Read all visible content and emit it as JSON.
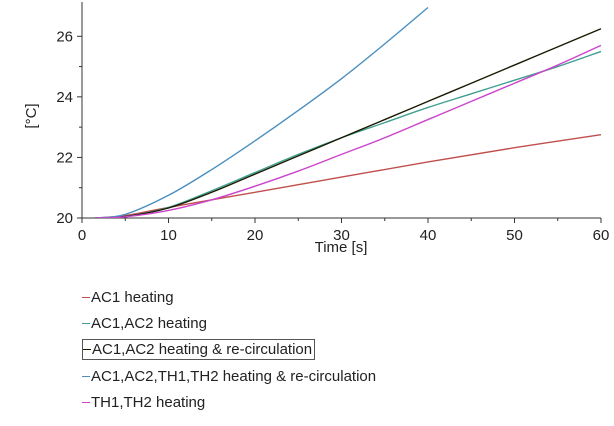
{
  "chart_data": {
    "type": "line",
    "xlabel": "Time [s]",
    "ylabel": "[°C]",
    "xlim": [
      0,
      60
    ],
    "ylim": [
      20,
      27
    ],
    "xticks": [
      0,
      10,
      20,
      30,
      40,
      50,
      60
    ],
    "yticks": [
      20,
      22,
      24,
      26
    ],
    "grid": false,
    "legend_position": "bottom",
    "series": [
      {
        "name": "AC1 heating",
        "color": "#c0504d",
        "points": [
          [
            1.5,
            20.0
          ],
          [
            5,
            20.08
          ],
          [
            10,
            20.35
          ],
          [
            20,
            20.85
          ],
          [
            30,
            21.35
          ],
          [
            40,
            21.85
          ],
          [
            50,
            22.32
          ],
          [
            60,
            22.75
          ]
        ]
      },
      {
        "name": "AC1,AC2 heating",
        "color": "#3f9f8f",
        "points": [
          [
            1.5,
            20.0
          ],
          [
            5,
            20.05
          ],
          [
            10,
            20.35
          ],
          [
            15,
            20.9
          ],
          [
            20,
            21.5
          ],
          [
            25,
            22.1
          ],
          [
            30,
            22.65
          ],
          [
            35,
            23.15
          ],
          [
            40,
            23.65
          ],
          [
            45,
            24.1
          ],
          [
            50,
            24.55
          ],
          [
            55,
            25.0
          ],
          [
            60,
            25.5
          ]
        ]
      },
      {
        "name": "AC1,AC2 heating & re-circulation",
        "color": "#1a1a00",
        "points": [
          [
            1.5,
            20.0
          ],
          [
            5,
            20.05
          ],
          [
            10,
            20.33
          ],
          [
            15,
            20.85
          ],
          [
            20,
            21.45
          ],
          [
            25,
            22.05
          ],
          [
            30,
            22.65
          ],
          [
            35,
            23.25
          ],
          [
            40,
            23.85
          ],
          [
            45,
            24.45
          ],
          [
            50,
            25.05
          ],
          [
            55,
            25.65
          ],
          [
            60,
            26.25
          ]
        ]
      },
      {
        "name": "AC1,AC2,TH1,TH2 heating & re-circulation",
        "color": "#4a8fc0",
        "points": [
          [
            1.5,
            20.0
          ],
          [
            5,
            20.12
          ],
          [
            10,
            20.75
          ],
          [
            15,
            21.6
          ],
          [
            20,
            22.55
          ],
          [
            25,
            23.55
          ],
          [
            30,
            24.6
          ],
          [
            35,
            25.75
          ],
          [
            40,
            26.95
          ]
        ]
      },
      {
        "name": "TH1,TH2 heating",
        "color": "#cc44cc",
        "points": [
          [
            1.5,
            20.0
          ],
          [
            5,
            20.04
          ],
          [
            10,
            20.25
          ],
          [
            15,
            20.6
          ],
          [
            20,
            21.05
          ],
          [
            25,
            21.55
          ],
          [
            30,
            22.1
          ],
          [
            35,
            22.65
          ],
          [
            40,
            23.25
          ],
          [
            45,
            23.85
          ],
          [
            50,
            24.45
          ],
          [
            55,
            25.05
          ],
          [
            60,
            25.7
          ]
        ]
      }
    ]
  },
  "legend": {
    "items": [
      {
        "label": "AC1 heating",
        "color": "#c0504d",
        "highlighted": false
      },
      {
        "label": "AC1,AC2 heating",
        "color": "#3f9f8f",
        "highlighted": false
      },
      {
        "label": "AC1,AC2 heating & re-circulation",
        "color": "#1a1a00",
        "highlighted": true
      },
      {
        "label": "AC1,AC2,TH1,TH2 heating & re-circulation",
        "color": "#4a8fc0",
        "highlighted": false
      },
      {
        "label": "TH1,TH2 heating",
        "color": "#cc44cc",
        "highlighted": false
      }
    ]
  }
}
